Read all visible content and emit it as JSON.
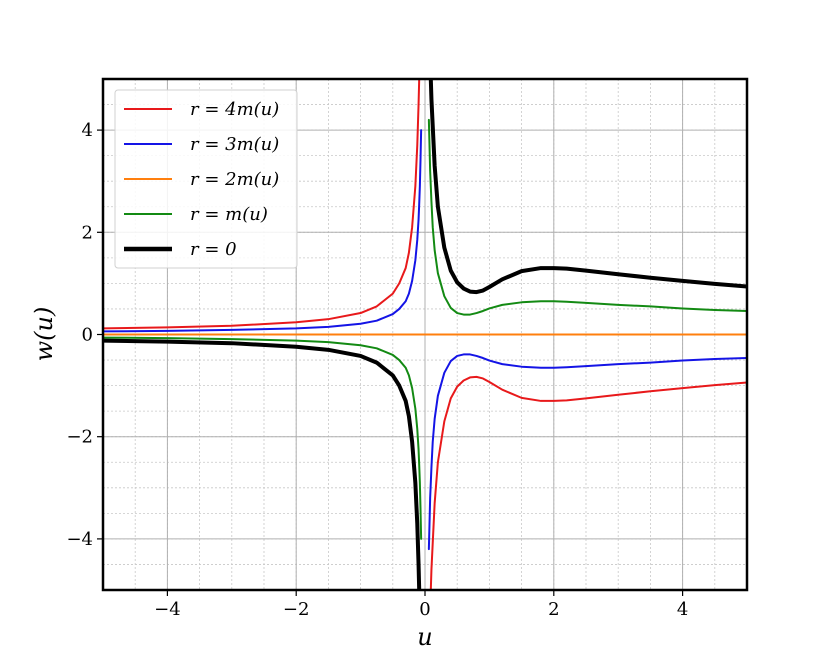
{
  "chart_data": {
    "type": "line",
    "title": "",
    "xlabel": "u",
    "ylabel": "w(u)",
    "xlim": [
      -5,
      5
    ],
    "ylim": [
      -5,
      5
    ],
    "xticks": [
      -4,
      -2,
      0,
      2,
      4
    ],
    "yticks": [
      -4,
      -2,
      0,
      2,
      4
    ],
    "xtick_labels": [
      "−4",
      "−2",
      "0",
      "2",
      "4"
    ],
    "ytick_labels": [
      "−4",
      "−2",
      "0",
      "2",
      "4"
    ],
    "grid": true,
    "minor_grid": true,
    "legend_position": "top-left",
    "series": [
      {
        "name": "r = 4m(u)",
        "color": "#e8191b",
        "x": [
          -5,
          -4,
          -3,
          -2,
          -1.5,
          -1,
          -0.75,
          -0.5,
          -0.4,
          -0.3,
          -0.25,
          -0.2,
          -0.15,
          -0.12,
          -0.1,
          -0.09,
          0.09,
          0.1,
          0.15,
          0.2,
          0.3,
          0.4,
          0.5,
          0.6,
          0.7,
          0.8,
          0.9,
          1.0,
          1.2,
          1.5,
          1.8,
          2.0,
          2.2,
          2.5,
          3,
          3.5,
          4,
          4.5,
          5
        ],
        "values": [
          0.12,
          0.14,
          0.17,
          0.24,
          0.3,
          0.42,
          0.55,
          0.8,
          1.0,
          1.3,
          1.6,
          2.1,
          2.9,
          3.7,
          4.5,
          5.0,
          -5.0,
          -4.6,
          -3.3,
          -2.5,
          -1.7,
          -1.25,
          -1.02,
          -0.9,
          -0.84,
          -0.83,
          -0.86,
          -0.93,
          -1.08,
          -1.24,
          -1.3,
          -1.3,
          -1.29,
          -1.25,
          -1.18,
          -1.11,
          -1.05,
          -0.99,
          -0.94
        ]
      },
      {
        "name": "r = 3m(u)",
        "color": "#1414e6",
        "x": [
          -5,
          -4,
          -3,
          -2,
          -1.5,
          -1,
          -0.75,
          -0.5,
          -0.4,
          -0.3,
          -0.25,
          -0.2,
          -0.15,
          -0.12,
          -0.1,
          -0.09,
          -0.08,
          -0.07,
          -0.06,
          0.06,
          0.07,
          0.08,
          0.09,
          0.1,
          0.12,
          0.15,
          0.2,
          0.3,
          0.4,
          0.5,
          0.6,
          0.7,
          0.8,
          0.9,
          1.0,
          1.2,
          1.5,
          1.8,
          2.0,
          2.2,
          2.5,
          3,
          3.5,
          4,
          4.5,
          5
        ],
        "values": [
          0.06,
          0.07,
          0.09,
          0.12,
          0.15,
          0.21,
          0.27,
          0.4,
          0.5,
          0.65,
          0.8,
          1.05,
          1.45,
          1.85,
          2.25,
          2.55,
          2.9,
          3.4,
          4.0,
          -4.2,
          -3.7,
          -3.2,
          -2.9,
          -2.6,
          -2.1,
          -1.65,
          -1.2,
          -0.75,
          -0.52,
          -0.42,
          -0.39,
          -0.39,
          -0.42,
          -0.46,
          -0.51,
          -0.58,
          -0.63,
          -0.65,
          -0.65,
          -0.64,
          -0.62,
          -0.58,
          -0.55,
          -0.51,
          -0.48,
          -0.46
        ]
      },
      {
        "name": "r = 2m(u)",
        "color": "#ff7f0e",
        "x": [
          -5,
          5
        ],
        "values": [
          0,
          0
        ]
      },
      {
        "name": "r = m(u)",
        "color": "#138a13",
        "x": [
          -5,
          -4,
          -3,
          -2,
          -1.5,
          -1,
          -0.75,
          -0.5,
          -0.4,
          -0.3,
          -0.25,
          -0.2,
          -0.15,
          -0.12,
          -0.1,
          -0.09,
          -0.08,
          -0.07,
          -0.06,
          0.06,
          0.07,
          0.08,
          0.09,
          0.1,
          0.12,
          0.15,
          0.2,
          0.3,
          0.4,
          0.5,
          0.6,
          0.7,
          0.8,
          0.9,
          1.0,
          1.2,
          1.5,
          1.8,
          2.0,
          2.2,
          2.5,
          3,
          3.5,
          4,
          4.5,
          5
        ],
        "values": [
          -0.06,
          -0.07,
          -0.09,
          -0.12,
          -0.15,
          -0.21,
          -0.27,
          -0.4,
          -0.5,
          -0.65,
          -0.8,
          -1.05,
          -1.45,
          -1.85,
          -2.25,
          -2.55,
          -2.9,
          -3.4,
          -4.0,
          4.2,
          3.7,
          3.2,
          2.9,
          2.6,
          2.1,
          1.65,
          1.2,
          0.75,
          0.52,
          0.42,
          0.39,
          0.39,
          0.42,
          0.46,
          0.51,
          0.58,
          0.63,
          0.65,
          0.65,
          0.64,
          0.62,
          0.58,
          0.55,
          0.51,
          0.48,
          0.46
        ]
      },
      {
        "name": "r = 0",
        "color": "#000000",
        "x": [
          -5,
          -4,
          -3,
          -2,
          -1.5,
          -1,
          -0.75,
          -0.5,
          -0.4,
          -0.3,
          -0.25,
          -0.2,
          -0.15,
          -0.12,
          -0.1,
          -0.09,
          0.09,
          0.1,
          0.15,
          0.2,
          0.3,
          0.4,
          0.5,
          0.6,
          0.7,
          0.8,
          0.9,
          1.0,
          1.2,
          1.5,
          1.8,
          2.0,
          2.2,
          2.5,
          3,
          3.5,
          4,
          4.5,
          5
        ],
        "values": [
          -0.12,
          -0.14,
          -0.17,
          -0.24,
          -0.3,
          -0.42,
          -0.55,
          -0.8,
          -1.0,
          -1.3,
          -1.6,
          -2.1,
          -2.9,
          -3.7,
          -4.5,
          -5.0,
          5.0,
          4.6,
          3.3,
          2.5,
          1.7,
          1.25,
          1.02,
          0.9,
          0.84,
          0.83,
          0.86,
          0.93,
          1.08,
          1.24,
          1.3,
          1.3,
          1.29,
          1.25,
          1.18,
          1.11,
          1.05,
          0.99,
          0.94
        ]
      }
    ]
  }
}
